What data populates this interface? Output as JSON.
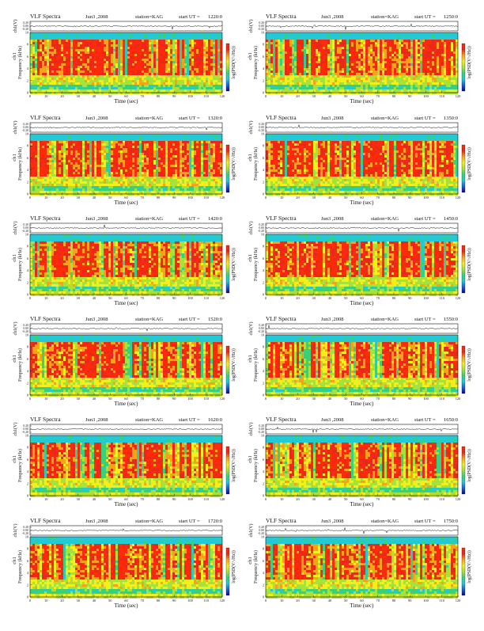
{
  "page": {
    "title": "VLF Spectra"
  },
  "colors": {
    "background": "#ffffff",
    "colormap": [
      "#0a0a8a",
      "#1f5fd6",
      "#25c9d6",
      "#36d17a",
      "#a6e23a",
      "#f2ef1c",
      "#f7a31a",
      "#e8281a",
      "#ff2a0a"
    ],
    "trace": "#111111"
  },
  "common": {
    "title": "VLF Spectra",
    "date": "Jun3 ,2008",
    "station": "station=KAG",
    "start_prefix": "start  UT  =",
    "ch_label": "ch1(V)",
    "ch_ticks": [
      "0.20",
      "0.00",
      "-0.20"
    ],
    "freq_label": "Frequency  (kHz)",
    "freq_ticks": [
      "0",
      "2",
      "4",
      "6",
      "8",
      "10"
    ],
    "time_label": "Time  (sec)",
    "time_ticks": [
      "0",
      "10",
      "20",
      "30",
      "40",
      "50",
      "60",
      "70",
      "80",
      "90",
      "100",
      "110",
      "120"
    ],
    "colorbar_label": "log(PSD(V/√Hz))"
  },
  "chart_data": [
    {
      "type": "heatmap",
      "title": "VLF Spectra",
      "date": "Jun3 ,2008",
      "station": "station=KAG",
      "start_ut": "1220:0",
      "xlabel": "Time  (sec)",
      "ylabel": "Frequency  (kHz)",
      "xlim": [
        0,
        120
      ],
      "ylim": [
        0,
        10
      ],
      "trace_ylabel": "ch1(V)",
      "trace_ylim": [
        -0.2,
        0.2
      ],
      "colorbar": "log(PSD(V/√Hz))",
      "channel": "ch1"
    },
    {
      "type": "heatmap",
      "title": "VLF Spectra",
      "date": "Jun3 ,2008",
      "station": "station=KAG",
      "start_ut": "1250:0",
      "xlabel": "Time  (sec)",
      "ylabel": "Frequency  (kHz)",
      "xlim": [
        0,
        120
      ],
      "ylim": [
        0,
        10
      ],
      "trace_ylabel": "ch1(V)",
      "trace_ylim": [
        -0.2,
        0.2
      ],
      "colorbar": "log(PSD(V/√Hz))",
      "channel": "ch1"
    },
    {
      "type": "heatmap",
      "title": "VLF Spectra",
      "date": "Jun3 ,2008",
      "station": "station=KAG",
      "start_ut": "1320:0",
      "xlabel": "Time  (sec)",
      "ylabel": "Frequency  (kHz)",
      "xlim": [
        0,
        120
      ],
      "ylim": [
        0,
        10
      ],
      "trace_ylabel": "ch1(V)",
      "trace_ylim": [
        -0.2,
        0.2
      ],
      "colorbar": "log(PSD(V/√Hz))",
      "channel": "ch1"
    },
    {
      "type": "heatmap",
      "title": "VLF Spectra",
      "date": "Jun3 ,2008",
      "station": "station=KAG",
      "start_ut": "1350:0",
      "xlabel": "Time  (sec)",
      "ylabel": "Frequency  (kHz)",
      "xlim": [
        0,
        120
      ],
      "ylim": [
        0,
        10
      ],
      "trace_ylabel": "ch1(V)",
      "trace_ylim": [
        -0.2,
        0.2
      ],
      "colorbar": "log(PSD(V/√Hz))",
      "channel": "ch1"
    },
    {
      "type": "heatmap",
      "title": "VLF Spectra",
      "date": "Jun3 ,2008",
      "station": "station=KAG",
      "start_ut": "1420:0",
      "xlabel": "Time  (sec)",
      "ylabel": "Frequency  (kHz)",
      "xlim": [
        0,
        120
      ],
      "ylim": [
        0,
        10
      ],
      "trace_ylabel": "ch1(V)",
      "trace_ylim": [
        -0.2,
        0.2
      ],
      "colorbar": "log(PSD(V/√Hz))",
      "channel": "ch1"
    },
    {
      "type": "heatmap",
      "title": "VLF Spectra",
      "date": "Jun3 ,2008",
      "station": "station=KAG",
      "start_ut": "1450:0",
      "xlabel": "Time  (sec)",
      "ylabel": "Frequency  (kHz)",
      "xlim": [
        0,
        120
      ],
      "ylim": [
        0,
        10
      ],
      "trace_ylabel": "ch1(V)",
      "trace_ylim": [
        -0.2,
        0.2
      ],
      "colorbar": "log(PSD(V/√Hz))",
      "channel": "ch1"
    },
    {
      "type": "heatmap",
      "title": "VLF Spectra",
      "date": "Jun3 ,2008",
      "station": "station=KAG",
      "start_ut": "1520:0",
      "xlabel": "Time  (sec)",
      "ylabel": "Frequency  (kHz)",
      "xlim": [
        0,
        120
      ],
      "ylim": [
        0,
        10
      ],
      "trace_ylabel": "ch1(V)",
      "trace_ylim": [
        -0.2,
        0.2
      ],
      "colorbar": "log(PSD(V/√Hz))",
      "channel": "ch1"
    },
    {
      "type": "heatmap",
      "title": "VLF Spectra",
      "date": "Jun3 ,2008",
      "station": "station=KAG",
      "start_ut": "1550:0",
      "xlabel": "Time  (sec)",
      "ylabel": "Frequency  (kHz)",
      "xlim": [
        0,
        120
      ],
      "ylim": [
        0,
        10
      ],
      "trace_ylabel": "ch1(V)",
      "trace_ylim": [
        -0.2,
        0.2
      ],
      "colorbar": "log(PSD(V/√Hz))",
      "channel": "ch1"
    },
    {
      "type": "heatmap",
      "title": "VLF Spectra",
      "date": "Jun3 ,2008",
      "station": "station=KAG",
      "start_ut": "1620:0",
      "xlabel": "Time  (sec)",
      "ylabel": "Frequency  (kHz)",
      "xlim": [
        0,
        120
      ],
      "ylim": [
        0,
        10
      ],
      "trace_ylabel": "ch1(V)",
      "trace_ylim": [
        -0.2,
        0.2
      ],
      "colorbar": "log(PSD(V/√Hz))",
      "channel": "ch1"
    },
    {
      "type": "heatmap",
      "title": "VLF Spectra",
      "date": "Jun3 ,2008",
      "station": "station=KAG",
      "start_ut": "1650:0",
      "xlabel": "Time  (sec)",
      "ylabel": "Frequency  (kHz)",
      "xlim": [
        0,
        120
      ],
      "ylim": [
        0,
        10
      ],
      "trace_ylabel": "ch1(V)",
      "trace_ylim": [
        -0.2,
        0.2
      ],
      "colorbar": "log(PSD(V/√Hz))",
      "channel": "ch1"
    },
    {
      "type": "heatmap",
      "title": "VLF Spectra",
      "date": "Jun3 ,2008",
      "station": "station=KAG",
      "start_ut": "1720:0",
      "xlabel": "Time  (sec)",
      "ylabel": "Frequency  (kHz)",
      "xlim": [
        0,
        120
      ],
      "ylim": [
        0,
        10
      ],
      "trace_ylabel": "ch1(V)",
      "trace_ylim": [
        -0.2,
        0.2
      ],
      "colorbar": "log(PSD(V/√Hz))",
      "channel": "ch1"
    },
    {
      "type": "heatmap",
      "title": "VLF Spectra",
      "date": "Jun3 ,2008",
      "station": "station=KAG",
      "start_ut": "1750:0",
      "xlabel": "Time  (sec)",
      "ylabel": "Frequency  (kHz)",
      "xlim": [
        0,
        120
      ],
      "ylim": [
        0,
        10
      ],
      "trace_ylabel": "ch1(V)",
      "trace_ylim": [
        -0.2,
        0.2
      ],
      "colorbar": "log(PSD(V/√Hz))",
      "channel": "ch1"
    }
  ]
}
